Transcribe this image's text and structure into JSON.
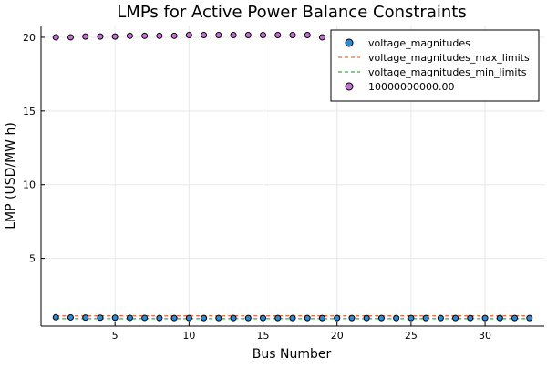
{
  "chart_data": {
    "type": "scatter",
    "title": "LMPs for Active Power Balance Constraints",
    "xlabel": "Bus Number",
    "ylabel": "LMP (USD/MW h)",
    "xlim": [
      0,
      34
    ],
    "ylim": [
      0.4,
      20.8
    ],
    "xticks": [
      5,
      10,
      15,
      20,
      25,
      30
    ],
    "yticks": [
      5,
      10,
      15,
      20
    ],
    "grid": true,
    "legend_position": "top-right",
    "series": [
      {
        "name": "voltage_magnitudes",
        "kind": "markers",
        "color": "#2a8cd8",
        "x": [
          1,
          2,
          3,
          4,
          5,
          6,
          7,
          8,
          9,
          10,
          11,
          12,
          13,
          14,
          15,
          16,
          17,
          18,
          19,
          20,
          21,
          22,
          23,
          24,
          25,
          26,
          27,
          28,
          29,
          30,
          31,
          32,
          33
        ],
        "y": [
          1.0,
          0.99,
          0.98,
          0.97,
          0.97,
          0.96,
          0.96,
          0.95,
          0.95,
          0.95,
          0.95,
          0.95,
          0.95,
          0.95,
          0.95,
          0.95,
          0.95,
          0.95,
          0.95,
          0.95,
          0.95,
          0.95,
          0.95,
          0.95,
          0.95,
          0.95,
          0.95,
          0.95,
          0.95,
          0.95,
          0.95,
          0.95,
          0.95
        ]
      },
      {
        "name": "voltage_magnitudes_max_limits",
        "kind": "dashed-line",
        "color": "#e26f46",
        "x": [
          1,
          2,
          3,
          4,
          5,
          6,
          7,
          8,
          9,
          10,
          11,
          12,
          13,
          14,
          15,
          16,
          17,
          18,
          19,
          20,
          21,
          22,
          23,
          24,
          25,
          26,
          27,
          28,
          29,
          30,
          31,
          32,
          33
        ],
        "y": [
          1.1,
          1.1,
          1.1,
          1.1,
          1.1,
          1.1,
          1.1,
          1.1,
          1.1,
          1.1,
          1.1,
          1.1,
          1.1,
          1.1,
          1.1,
          1.1,
          1.1,
          1.1,
          1.1,
          1.1,
          1.1,
          1.1,
          1.1,
          1.1,
          1.1,
          1.1,
          1.1,
          1.1,
          1.1,
          1.1,
          1.1,
          1.1,
          1.1
        ]
      },
      {
        "name": "voltage_magnitudes_min_limits",
        "kind": "dashed-line",
        "color": "#3da44d",
        "x": [
          1,
          2,
          3,
          4,
          5,
          6,
          7,
          8,
          9,
          10,
          11,
          12,
          13,
          14,
          15,
          16,
          17,
          18,
          19,
          20,
          21,
          22,
          23,
          24,
          25,
          26,
          27,
          28,
          29,
          30,
          31,
          32,
          33
        ],
        "y": [
          0.9,
          0.9,
          0.9,
          0.9,
          0.9,
          0.9,
          0.9,
          0.9,
          0.9,
          0.9,
          0.9,
          0.9,
          0.9,
          0.9,
          0.9,
          0.9,
          0.9,
          0.9,
          0.9,
          0.9,
          0.9,
          0.9,
          0.9,
          0.9,
          0.9,
          0.9,
          0.9,
          0.9,
          0.9,
          0.9,
          0.9,
          0.9,
          0.9
        ]
      },
      {
        "name": "10000000000.00",
        "kind": "markers",
        "color": "#c271d2",
        "x": [
          1,
          2,
          3,
          4,
          5,
          6,
          7,
          8,
          9,
          10,
          11,
          12,
          13,
          14,
          15,
          16,
          17,
          18,
          19,
          20,
          21,
          22,
          23,
          24,
          25,
          26,
          27,
          28,
          29,
          30,
          31,
          32,
          33
        ],
        "y": [
          20.0,
          20.0,
          20.05,
          20.05,
          20.05,
          20.1,
          20.1,
          20.1,
          20.1,
          20.15,
          20.15,
          20.15,
          20.15,
          20.15,
          20.15,
          20.15,
          20.15,
          20.15,
          20.0,
          20.0,
          20.0,
          20.0,
          20.0,
          20.0,
          20.0,
          20.0,
          20.0,
          20.0,
          20.0,
          20.0,
          20.0,
          20.0,
          20.0
        ]
      }
    ]
  }
}
